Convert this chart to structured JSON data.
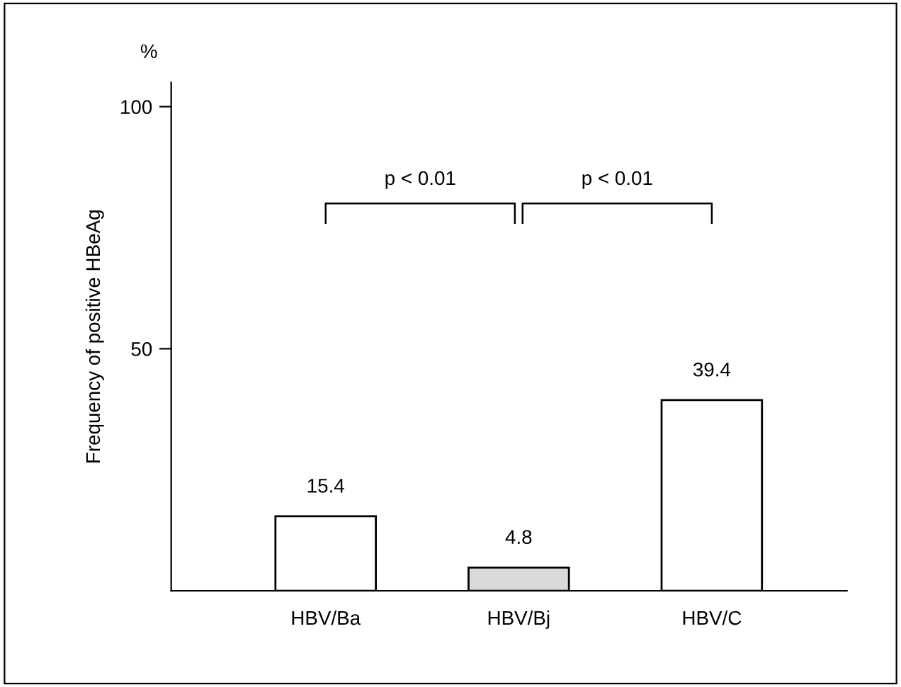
{
  "chart_data": {
    "type": "bar",
    "ylabel": "Frequency of positive HBeAg",
    "categories": [
      "HBV/Ba",
      "HBV/Bj",
      "HBV/C"
    ],
    "values": [
      15.4,
      4.8,
      39.4
    ],
    "colors": [
      "#ffffff",
      "#d9d9d9",
      "#ffffff"
    ],
    "data_labels": true,
    "ylim": [
      0,
      105
    ],
    "yticks": [
      50,
      100
    ],
    "grid": false,
    "annotations": [
      "%",
      "p < 0.01",
      "p < 0.01"
    ]
  }
}
